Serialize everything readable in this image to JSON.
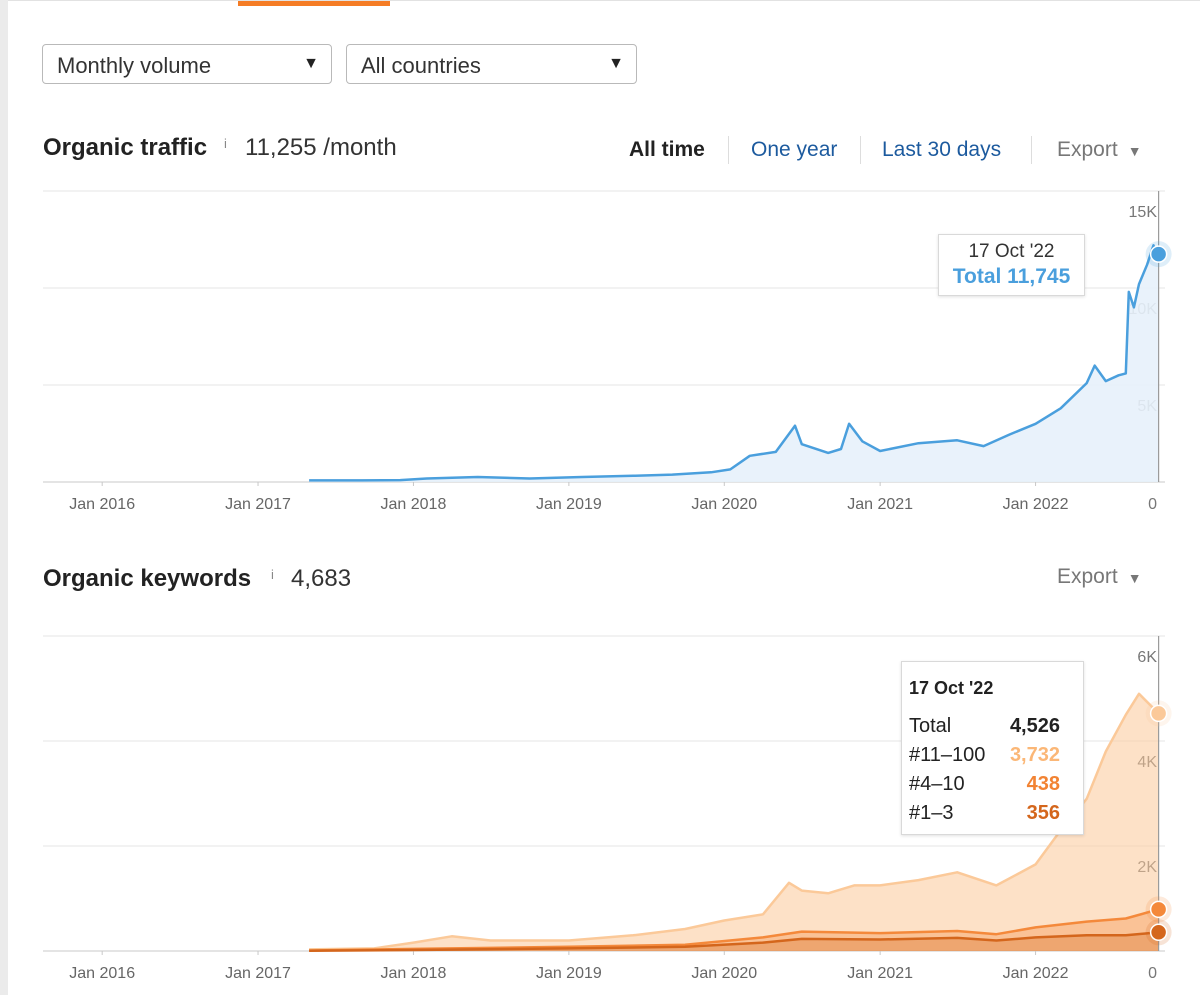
{
  "filters": {
    "volume_select": "Monthly volume",
    "country_select": "All countries"
  },
  "traffic": {
    "title": "Organic traffic",
    "info_mark": "i",
    "value": "11,255 /month",
    "range_tabs": [
      "All time",
      "One year",
      "Last 30 days"
    ],
    "active_range": "All time",
    "export_label": "Export",
    "tooltip": {
      "date": "17 Oct '22",
      "total": "Total 11,745"
    }
  },
  "keywords": {
    "title": "Organic keywords",
    "info_mark": "i",
    "value": "4,683",
    "export_label": "Export",
    "tooltip": {
      "date": "17 Oct '22",
      "rows": [
        {
          "label": "Total",
          "value": "4,526"
        },
        {
          "label": "#11–100",
          "value": "3,732"
        },
        {
          "label": "#4–10",
          "value": "438"
        },
        {
          "label": "#1–3",
          "value": "356"
        }
      ]
    }
  },
  "colors": {
    "traffic_line": "#4a9fdd",
    "traffic_fill": "#e7f1fb",
    "kw_11_100": "#fbc999",
    "kw_4_10": "#f4893b",
    "kw_1_3": "#d4661c",
    "active_tab_indicator": "#f57c25"
  },
  "chart_data": [
    {
      "type": "area",
      "title": "Organic traffic",
      "x_ticks": [
        "Jan 2016",
        "Jan 2017",
        "Jan 2018",
        "Jan 2019",
        "Jan 2020",
        "Jan 2021",
        "Jan 2022"
      ],
      "y_ticks": [
        "0",
        "5K",
        "10K",
        "15K"
      ],
      "ylim": [
        0,
        15000
      ],
      "xlim": [
        "2015-08-15",
        "2022-11-01"
      ],
      "grid": true,
      "series": [
        {
          "values": [
            [
              "2017-05-01",
              80
            ],
            [
              "2017-09-01",
              80
            ],
            [
              "2017-12-01",
              100
            ],
            [
              "2018-02-01",
              180
            ],
            [
              "2018-06-01",
              260
            ],
            [
              "2018-10-01",
              180
            ],
            [
              "2019-02-01",
              260
            ],
            [
              "2019-06-01",
              320
            ],
            [
              "2019-09-01",
              380
            ],
            [
              "2019-12-01",
              500
            ],
            [
              "2020-01-15",
              650
            ],
            [
              "2020-03-01",
              1350
            ],
            [
              "2020-05-01",
              1550
            ],
            [
              "2020-06-15",
              2900
            ],
            [
              "2020-07-01",
              1950
            ],
            [
              "2020-09-01",
              1500
            ],
            [
              "2020-10-01",
              1700
            ],
            [
              "2020-10-20",
              3000
            ],
            [
              "2020-11-20",
              2100
            ],
            [
              "2021-01-01",
              1600
            ],
            [
              "2021-04-01",
              2000
            ],
            [
              "2021-07-01",
              2150
            ],
            [
              "2021-09-01",
              1850
            ],
            [
              "2021-11-01",
              2450
            ],
            [
              "2022-01-01",
              3000
            ],
            [
              "2022-03-01",
              3800
            ],
            [
              "2022-05-01",
              5100
            ],
            [
              "2022-05-20",
              6000
            ],
            [
              "2022-06-15",
              5200
            ],
            [
              "2022-07-15",
              5500
            ],
            [
              "2022-08-01",
              5600
            ],
            [
              "2022-08-08",
              9800
            ],
            [
              "2022-08-20",
              9000
            ],
            [
              "2022-09-01",
              10200
            ],
            [
              "2022-09-20",
              11200
            ],
            [
              "2022-10-05",
              12200
            ],
            [
              "2022-10-10",
              11700
            ],
            [
              "2022-10-17",
              11745
            ]
          ]
        }
      ]
    },
    {
      "type": "area",
      "title": "Organic keywords",
      "x_ticks": [
        "Jan 2016",
        "Jan 2017",
        "Jan 2018",
        "Jan 2019",
        "Jan 2020",
        "Jan 2021",
        "Jan 2022"
      ],
      "y_ticks": [
        "0",
        "2K",
        "4K",
        "6K"
      ],
      "ylim": [
        0,
        6000
      ],
      "xlim": [
        "2015-08-15",
        "2022-11-01"
      ],
      "grid": true,
      "series": [
        {
          "name": "#11–100",
          "values": [
            [
              "2017-05-01",
              30
            ],
            [
              "2017-10-01",
              50
            ],
            [
              "2018-01-01",
              160
            ],
            [
              "2018-04-01",
              280
            ],
            [
              "2018-07-01",
              200
            ],
            [
              "2019-01-01",
              200
            ],
            [
              "2019-06-01",
              300
            ],
            [
              "2019-10-01",
              420
            ],
            [
              "2020-01-01",
              580
            ],
            [
              "2020-04-01",
              700
            ],
            [
              "2020-06-01",
              1300
            ],
            [
              "2020-07-01",
              1150
            ],
            [
              "2020-09-01",
              1100
            ],
            [
              "2020-11-01",
              1250
            ],
            [
              "2021-01-01",
              1250
            ],
            [
              "2021-04-01",
              1350
            ],
            [
              "2021-07-01",
              1500
            ],
            [
              "2021-10-01",
              1250
            ],
            [
              "2022-01-01",
              1650
            ],
            [
              "2022-03-01",
              2300
            ],
            [
              "2022-05-01",
              2900
            ],
            [
              "2022-06-15",
              3800
            ],
            [
              "2022-08-01",
              4500
            ],
            [
              "2022-09-01",
              4900
            ],
            [
              "2022-10-17",
              4526
            ]
          ]
        },
        {
          "name": "#4–10",
          "values": [
            [
              "2017-05-01",
              10
            ],
            [
              "2018-01-01",
              40
            ],
            [
              "2019-01-01",
              80
            ],
            [
              "2019-10-01",
              120
            ],
            [
              "2020-04-01",
              260
            ],
            [
              "2020-07-01",
              370
            ],
            [
              "2021-01-01",
              340
            ],
            [
              "2021-07-01",
              380
            ],
            [
              "2021-10-01",
              320
            ],
            [
              "2022-01-01",
              450
            ],
            [
              "2022-05-01",
              560
            ],
            [
              "2022-08-01",
              620
            ],
            [
              "2022-10-17",
              794
            ]
          ]
        },
        {
          "name": "#1–3",
          "values": [
            [
              "2017-05-01",
              5
            ],
            [
              "2018-01-01",
              20
            ],
            [
              "2019-01-01",
              50
            ],
            [
              "2019-10-01",
              80
            ],
            [
              "2020-04-01",
              160
            ],
            [
              "2020-07-01",
              230
            ],
            [
              "2021-01-01",
              220
            ],
            [
              "2021-07-01",
              250
            ],
            [
              "2021-10-01",
              200
            ],
            [
              "2022-01-01",
              260
            ],
            [
              "2022-05-01",
              300
            ],
            [
              "2022-08-01",
              300
            ],
            [
              "2022-10-17",
              356
            ]
          ]
        }
      ]
    }
  ]
}
